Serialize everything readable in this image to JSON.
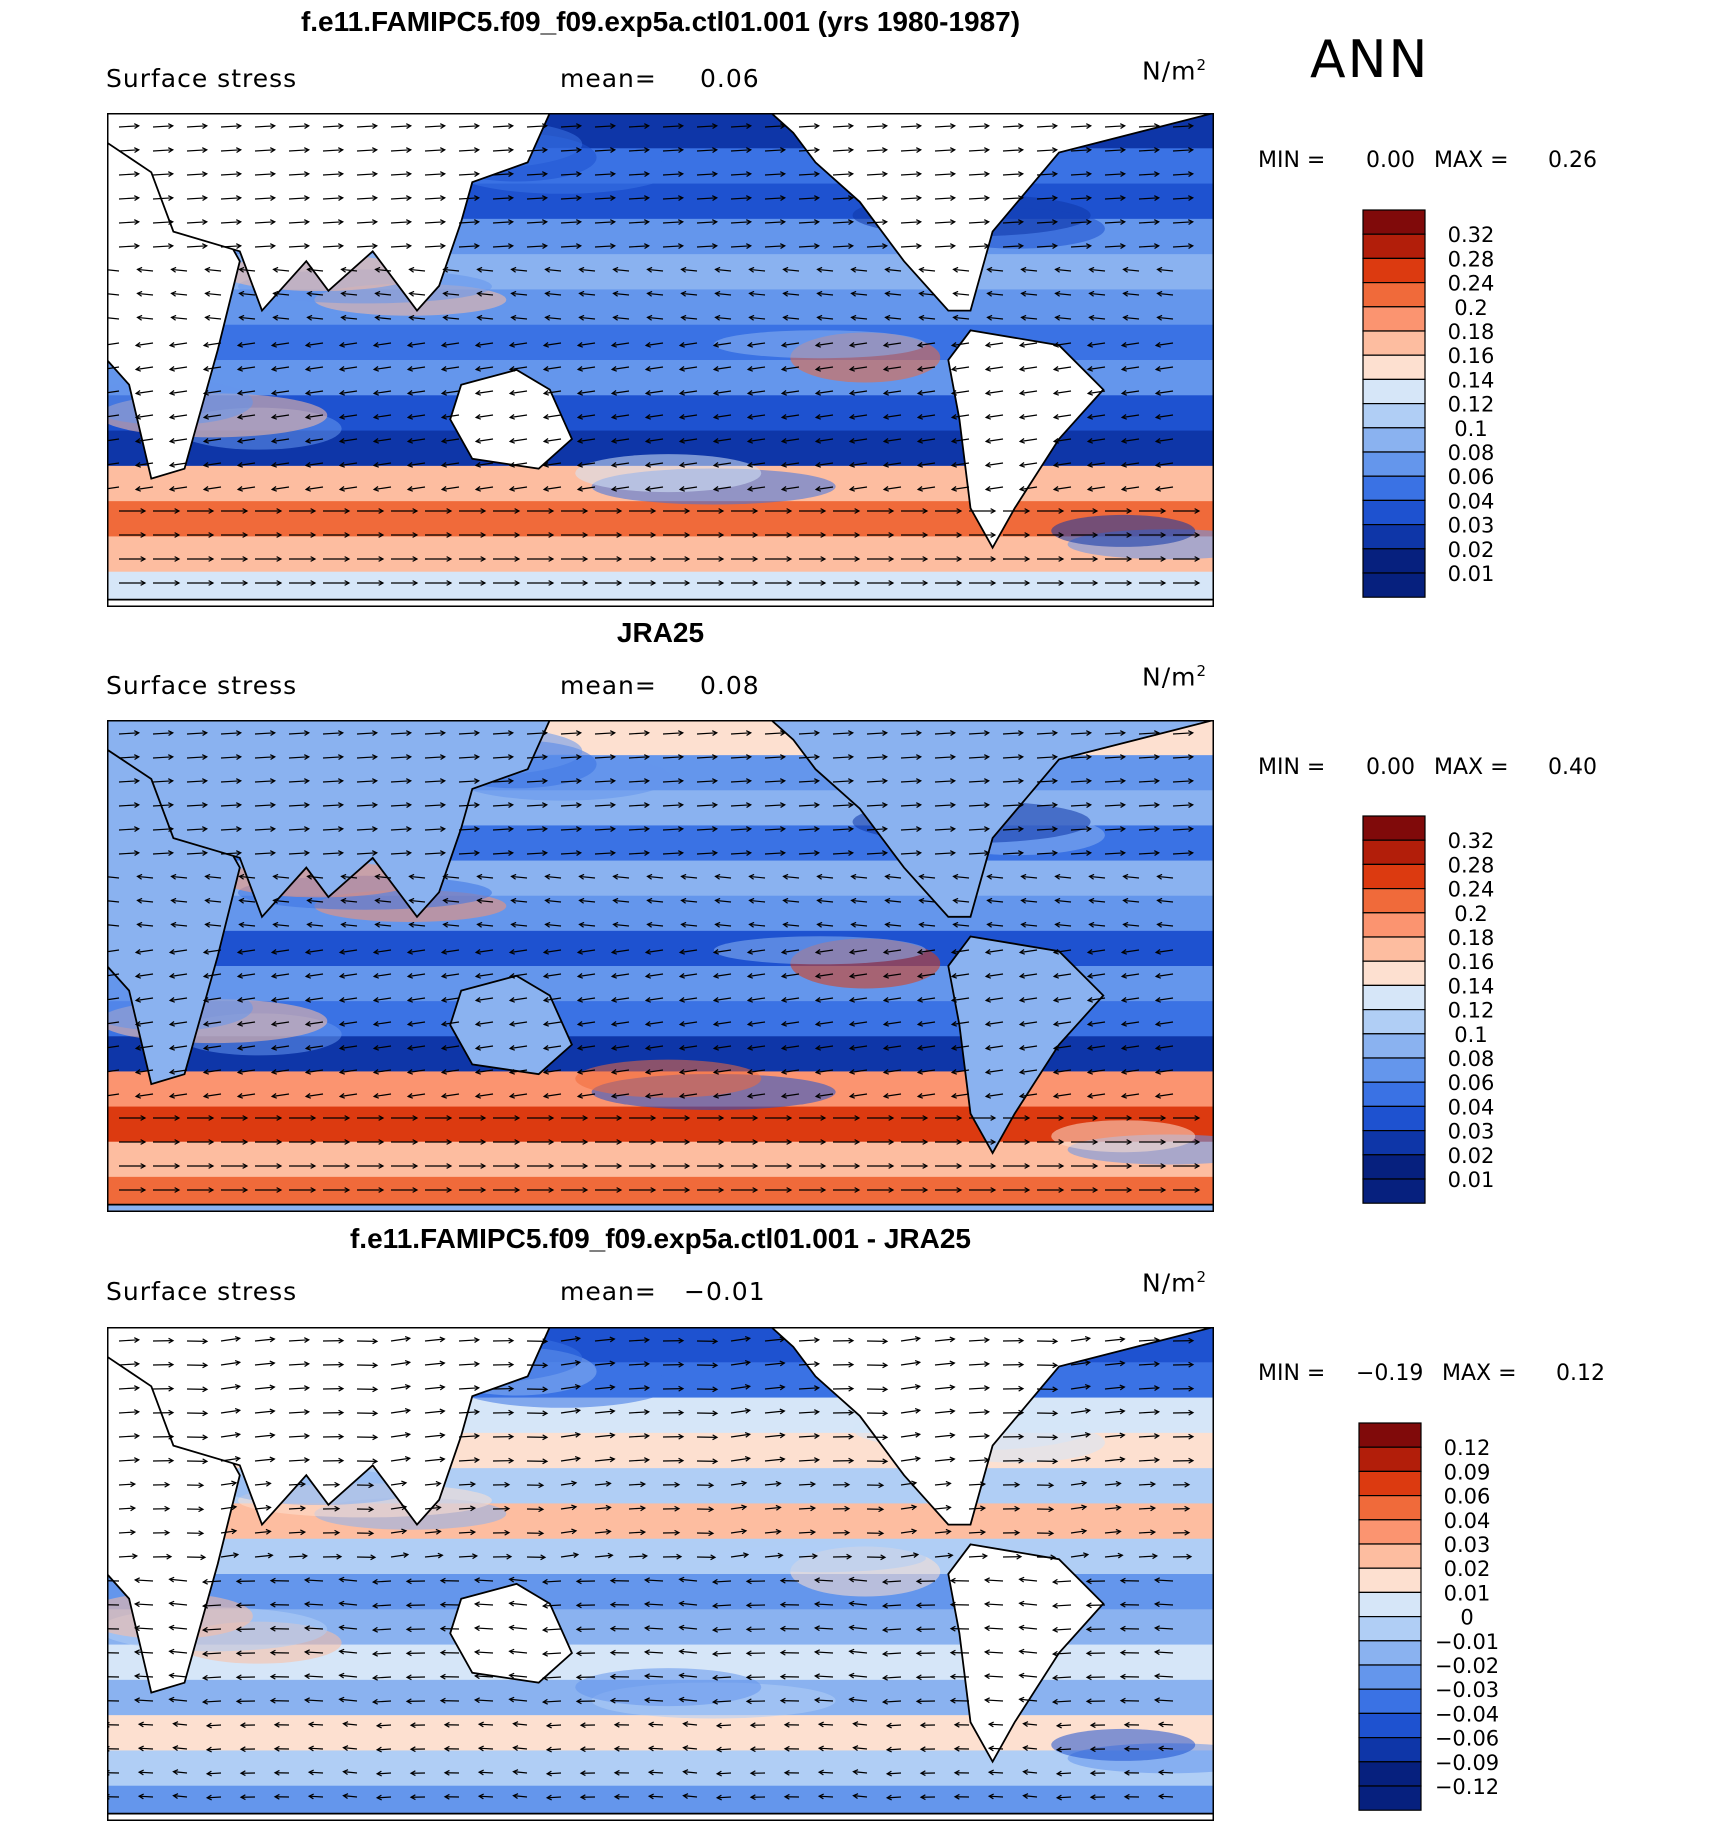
{
  "season": "ANN",
  "panels": [
    {
      "title": "f.e11.FAMIPC5.f09_f09.exp5a.ctl01.001 (yrs 1980-1987)",
      "variable": "Surface stress",
      "mean_label": "mean=",
      "mean_value": "0.06",
      "units": "N/m",
      "units_sup": "2",
      "min_label": "MIN =",
      "min_value": "0.00",
      "max_label": "MAX =",
      "max_value": "0.26",
      "colorbar": {
        "levels": [
          "0.32",
          "0.28",
          "0.24",
          "0.2",
          "0.18",
          "0.16",
          "0.14",
          "0.12",
          "0.1",
          "0.08",
          "0.06",
          "0.04",
          "0.03",
          "0.02",
          "0.01"
        ],
        "colors": [
          "#800a0a",
          "#b21e0a",
          "#dc3a10",
          "#f06a3a",
          "#fb9470",
          "#fdbda0",
          "#fde0d0",
          "#d6e6f8",
          "#b0cef5",
          "#8ab2f0",
          "#6496ec",
          "#3a72e4",
          "#1e52d0",
          "#0e36a8",
          "#06207e"
        ]
      }
    },
    {
      "title": "JRA25",
      "variable": "Surface stress",
      "mean_label": "mean=",
      "mean_value": "0.08",
      "units": "N/m",
      "units_sup": "2",
      "min_label": "MIN =",
      "min_value": "0.00",
      "max_label": "MAX =",
      "max_value": "0.40",
      "colorbar": {
        "levels": [
          "0.32",
          "0.28",
          "0.24",
          "0.2",
          "0.18",
          "0.16",
          "0.14",
          "0.12",
          "0.1",
          "0.08",
          "0.06",
          "0.04",
          "0.03",
          "0.02",
          "0.01"
        ],
        "colors": [
          "#800a0a",
          "#b21e0a",
          "#dc3a10",
          "#f06a3a",
          "#fb9470",
          "#fdbda0",
          "#fde0d0",
          "#d6e6f8",
          "#b0cef5",
          "#8ab2f0",
          "#6496ec",
          "#3a72e4",
          "#1e52d0",
          "#0e36a8",
          "#06207e"
        ]
      }
    },
    {
      "title": "f.e11.FAMIPC5.f09_f09.exp5a.ctl01.001 - JRA25",
      "variable": "Surface stress",
      "mean_label": "mean=",
      "mean_value": "−0.01",
      "units": "N/m",
      "units_sup": "2",
      "min_label": "MIN =",
      "min_value": "−0.19",
      "max_label": "MAX =",
      "max_value": "0.12",
      "colorbar": {
        "levels": [
          "0.12",
          "0.09",
          "0.06",
          "0.04",
          "0.03",
          "0.02",
          "0.01",
          "0",
          "−0.01",
          "−0.02",
          "−0.03",
          "−0.04",
          "−0.06",
          "−0.09",
          "−0.12"
        ],
        "colors": [
          "#800a0a",
          "#b21e0a",
          "#dc3a10",
          "#f06a3a",
          "#fb9470",
          "#fdbda0",
          "#fde0d0",
          "#d6e6f8",
          "#b0cef5",
          "#8ab2f0",
          "#6496ec",
          "#3a72e4",
          "#1e52d0",
          "#0e36a8",
          "#06207e"
        ]
      }
    }
  ],
  "chart_data": [
    {
      "type": "heatmap",
      "title": "f.e11.FAMIPC5.f09_f09.exp5a.ctl01.001 (yrs 1980-1987)",
      "variable": "Surface stress",
      "units": "N/m^2",
      "mean": 0.06,
      "min": 0.0,
      "max": 0.26,
      "contour_levels": [
        0.01,
        0.02,
        0.03,
        0.04,
        0.06,
        0.08,
        0.1,
        0.12,
        0.14,
        0.16,
        0.18,
        0.2,
        0.24,
        0.28,
        0.32
      ],
      "overlay": "wind stress vectors",
      "projection": "global cylindrical equidistant"
    },
    {
      "type": "heatmap",
      "title": "JRA25",
      "variable": "Surface stress",
      "units": "N/m^2",
      "mean": 0.08,
      "min": 0.0,
      "max": 0.4,
      "contour_levels": [
        0.01,
        0.02,
        0.03,
        0.04,
        0.06,
        0.08,
        0.1,
        0.12,
        0.14,
        0.16,
        0.18,
        0.2,
        0.24,
        0.28,
        0.32
      ],
      "overlay": "wind stress vectors",
      "projection": "global cylindrical equidistant"
    },
    {
      "type": "heatmap",
      "title": "f.e11.FAMIPC5.f09_f09.exp5a.ctl01.001 - JRA25",
      "variable": "Surface stress",
      "units": "N/m^2",
      "mean": -0.01,
      "min": -0.19,
      "max": 0.12,
      "contour_levels": [
        -0.12,
        -0.09,
        -0.06,
        -0.04,
        -0.03,
        -0.02,
        -0.01,
        0,
        0.01,
        0.02,
        0.03,
        0.04,
        0.06,
        0.09,
        0.12
      ],
      "overlay": "wind stress difference vectors",
      "projection": "global cylindrical equidistant"
    }
  ]
}
